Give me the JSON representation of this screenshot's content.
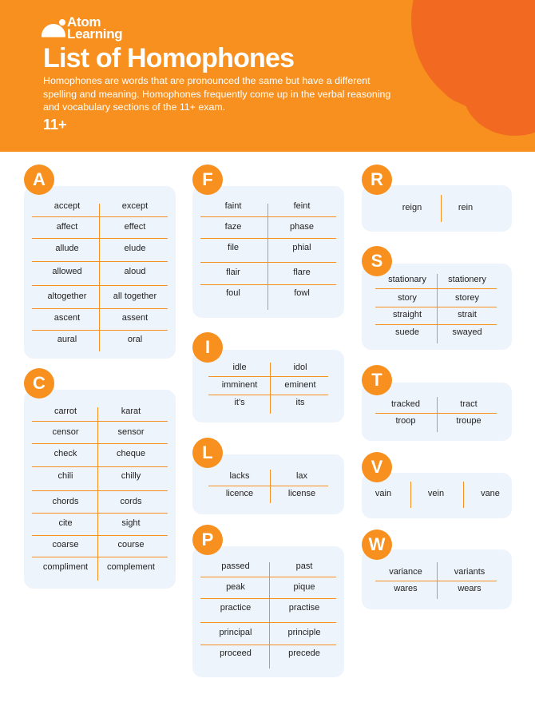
{
  "header": {
    "logo_line1": "Atom",
    "logo_line2": "Learning",
    "title": "List of Homophones",
    "intro": "Homophones are words that are pronounced the same but have a different spelling and meaning. Homophones frequently come up in the verbal reasoning and vocabulary sections of the 11+ exam.",
    "grade": "11+"
  },
  "colors": {
    "brand_orange": "#f7901e",
    "accent_orange": "#f26a21",
    "card_bg": "#eef4fb"
  },
  "sections": {
    "A": {
      "letter": "A",
      "pairs": [
        [
          "accept",
          "except"
        ],
        [
          "affect",
          "effect"
        ],
        [
          "allude",
          "elude"
        ],
        [
          "allowed",
          "aloud"
        ],
        [
          "altogether",
          "all together"
        ],
        [
          "ascent",
          "assent"
        ],
        [
          "aural",
          "oral"
        ]
      ]
    },
    "C": {
      "letter": "C",
      "pairs": [
        [
          "carrot",
          "karat"
        ],
        [
          "censor",
          "sensor"
        ],
        [
          "check",
          "cheque"
        ],
        [
          "chili",
          "chilly"
        ],
        [
          "chords",
          "cords"
        ],
        [
          "cite",
          "sight"
        ],
        [
          "coarse",
          "course"
        ],
        [
          "compliment",
          "complement"
        ]
      ]
    },
    "F": {
      "letter": "F",
      "pairs": [
        [
          "faint",
          "feint"
        ],
        [
          "faze",
          "phase"
        ],
        [
          "file",
          "phial"
        ],
        [
          "flair",
          "flare"
        ],
        [
          "foul",
          "fowl"
        ]
      ]
    },
    "I": {
      "letter": "I",
      "pairs": [
        [
          "idle",
          "idol"
        ],
        [
          "imminent",
          "eminent"
        ],
        [
          "it’s",
          "its"
        ]
      ]
    },
    "L": {
      "letter": "L",
      "pairs": [
        [
          "lacks",
          "lax"
        ],
        [
          "licence",
          "license"
        ]
      ]
    },
    "P": {
      "letter": "P",
      "pairs": [
        [
          "passed",
          "past"
        ],
        [
          "peak",
          "pique"
        ],
        [
          "practice",
          "practise"
        ],
        [
          "principal",
          "principle"
        ],
        [
          "proceed",
          "precede"
        ]
      ]
    },
    "R": {
      "letter": "R",
      "words": [
        "reign",
        "rein"
      ]
    },
    "S": {
      "letter": "S",
      "pairs": [
        [
          "stationary",
          "stationery"
        ],
        [
          "story",
          "storey"
        ],
        [
          "straight",
          "strait"
        ],
        [
          "suede",
          "swayed"
        ]
      ]
    },
    "T": {
      "letter": "T",
      "pairs": [
        [
          "tracked",
          "tract"
        ],
        [
          "troop",
          "troupe"
        ]
      ]
    },
    "V": {
      "letter": "V",
      "words": [
        "vain",
        "vein",
        "vane"
      ]
    },
    "W": {
      "letter": "W",
      "pairs": [
        [
          "variance",
          "variants"
        ],
        [
          "wares",
          "wears"
        ]
      ]
    }
  }
}
